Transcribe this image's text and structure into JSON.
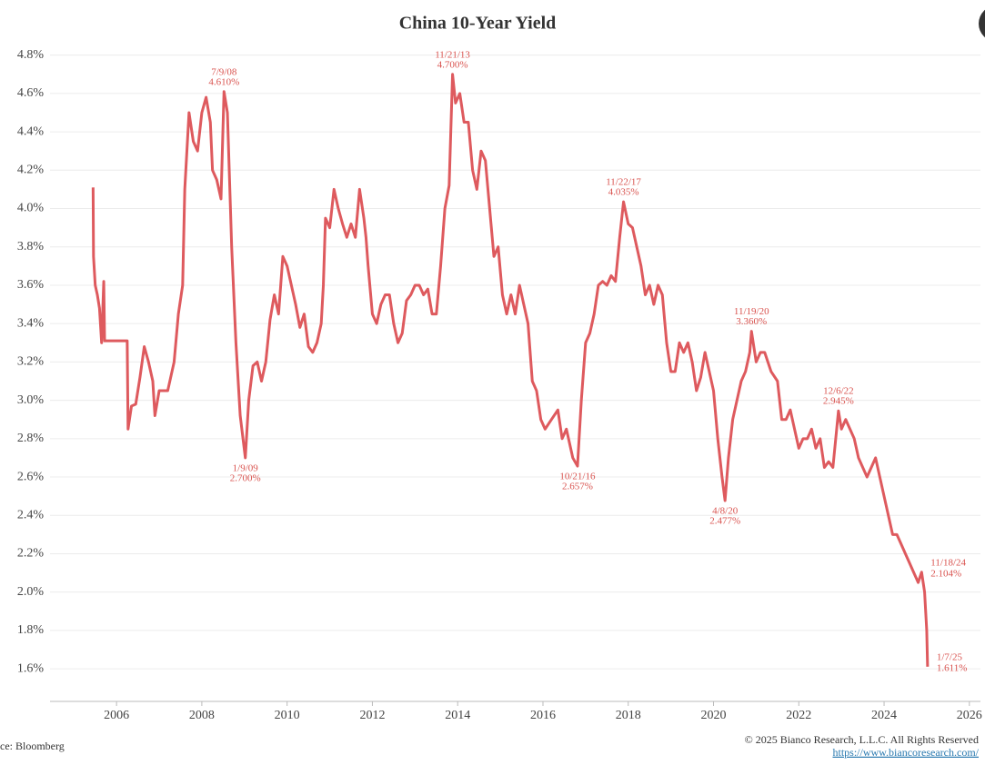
{
  "chart_data": {
    "type": "line",
    "title": "China 10-Year Yield",
    "source": "ce: Bloomberg",
    "copyright": "© 2025 Bianco Research, L.L.C. All Rights Reserved",
    "url": "https://www.biancoresearch.com/",
    "xlim": [
      2004.44,
      2026.26
    ],
    "xticks": [
      2006,
      2008,
      2010,
      2012,
      2014,
      2016,
      2018,
      2020,
      2022,
      2024,
      2026
    ],
    "ylim": [
      1.43,
      4.86
    ],
    "yticks": [
      {
        "value": 1.6,
        "label": "1.6%"
      },
      {
        "value": 1.8,
        "label": "1.8%"
      },
      {
        "value": 2.0,
        "label": "2.0%"
      },
      {
        "value": 2.2,
        "label": "2.2%"
      },
      {
        "value": 2.4,
        "label": "2.4%"
      },
      {
        "value": 2.6,
        "label": "2.6%"
      },
      {
        "value": 2.8,
        "label": "2.8%"
      },
      {
        "value": 3.0,
        "label": "3.0%"
      },
      {
        "value": 3.2,
        "label": "3.2%"
      },
      {
        "value": 3.4,
        "label": "3.4%"
      },
      {
        "value": 3.6,
        "label": "3.6%"
      },
      {
        "value": 3.8,
        "label": "3.8%"
      },
      {
        "value": 4.0,
        "label": "4.0%"
      },
      {
        "value": 4.2,
        "label": "4.2%"
      },
      {
        "value": 4.4,
        "label": "4.4%"
      },
      {
        "value": 4.6,
        "label": "4.6%"
      },
      {
        "value": 4.8,
        "label": "4.8%"
      }
    ],
    "grid": true,
    "color": "#de5a5e",
    "x": [
      2005.45,
      2005.46,
      2005.5,
      2005.55,
      2005.6,
      2005.65,
      2005.7,
      2005.72,
      2005.8,
      2006.25,
      2006.27,
      2006.35,
      2006.45,
      2006.55,
      2006.65,
      2006.75,
      2006.85,
      2006.9,
      2007.0,
      2007.2,
      2007.35,
      2007.45,
      2007.55,
      2007.6,
      2007.7,
      2007.8,
      2007.9,
      2008.0,
      2008.1,
      2008.2,
      2008.25,
      2008.35,
      2008.45,
      2008.52,
      2008.6,
      2008.7,
      2008.8,
      2008.9,
      2009.02,
      2009.1,
      2009.2,
      2009.3,
      2009.4,
      2009.5,
      2009.6,
      2009.7,
      2009.8,
      2009.9,
      2010.0,
      2010.1,
      2010.2,
      2010.3,
      2010.4,
      2010.5,
      2010.6,
      2010.7,
      2010.8,
      2010.85,
      2010.9,
      2011.0,
      2011.1,
      2011.2,
      2011.3,
      2011.4,
      2011.5,
      2011.6,
      2011.7,
      2011.8,
      2011.85,
      2011.9,
      2012.0,
      2012.1,
      2012.2,
      2012.3,
      2012.4,
      2012.5,
      2012.6,
      2012.7,
      2012.8,
      2012.9,
      2013.0,
      2013.1,
      2013.2,
      2013.3,
      2013.4,
      2013.5,
      2013.6,
      2013.7,
      2013.8,
      2013.88,
      2013.95,
      2014.05,
      2014.15,
      2014.25,
      2014.35,
      2014.45,
      2014.55,
      2014.65,
      2014.75,
      2014.85,
      2014.95,
      2015.05,
      2015.15,
      2015.25,
      2015.35,
      2015.45,
      2015.55,
      2015.65,
      2015.75,
      2015.85,
      2015.95,
      2016.05,
      2016.2,
      2016.35,
      2016.45,
      2016.55,
      2016.7,
      2016.81,
      2016.9,
      2017.0,
      2017.1,
      2017.2,
      2017.3,
      2017.4,
      2017.5,
      2017.6,
      2017.7,
      2017.8,
      2017.89,
      2018.0,
      2018.1,
      2018.2,
      2018.3,
      2018.4,
      2018.5,
      2018.6,
      2018.7,
      2018.8,
      2018.9,
      2019.0,
      2019.1,
      2019.2,
      2019.3,
      2019.4,
      2019.5,
      2019.6,
      2019.7,
      2019.8,
      2019.9,
      2020.0,
      2020.1,
      2020.2,
      2020.27,
      2020.35,
      2020.45,
      2020.55,
      2020.65,
      2020.75,
      2020.85,
      2020.89,
      2021.0,
      2021.1,
      2021.2,
      2021.35,
      2021.5,
      2021.6,
      2021.7,
      2021.8,
      2021.9,
      2022.0,
      2022.1,
      2022.2,
      2022.3,
      2022.4,
      2022.5,
      2022.6,
      2022.7,
      2022.8,
      2022.93,
      2023.0,
      2023.1,
      2023.2,
      2023.3,
      2023.4,
      2023.5,
      2023.6,
      2023.7,
      2023.8,
      2023.9,
      2024.0,
      2024.1,
      2024.2,
      2024.3,
      2024.4,
      2024.5,
      2024.6,
      2024.7,
      2024.8,
      2024.88,
      2024.95,
      2025.0,
      2025.02
    ],
    "values": [
      4.11,
      3.75,
      3.6,
      3.55,
      3.48,
      3.3,
      3.62,
      3.31,
      3.31,
      3.31,
      2.85,
      2.97,
      2.98,
      3.12,
      3.28,
      3.2,
      3.1,
      2.92,
      3.05,
      3.05,
      3.2,
      3.45,
      3.6,
      4.1,
      4.5,
      4.35,
      4.3,
      4.5,
      4.58,
      4.45,
      4.2,
      4.15,
      4.05,
      4.61,
      4.5,
      3.8,
      3.3,
      2.92,
      2.7,
      3.0,
      3.18,
      3.2,
      3.1,
      3.2,
      3.42,
      3.55,
      3.45,
      3.75,
      3.7,
      3.6,
      3.5,
      3.38,
      3.45,
      3.28,
      3.25,
      3.3,
      3.4,
      3.6,
      3.95,
      3.9,
      4.1,
      4.0,
      3.92,
      3.85,
      3.92,
      3.85,
      4.1,
      3.95,
      3.85,
      3.7,
      3.45,
      3.4,
      3.5,
      3.55,
      3.55,
      3.4,
      3.3,
      3.35,
      3.52,
      3.55,
      3.6,
      3.6,
      3.55,
      3.58,
      3.45,
      3.45,
      3.7,
      4.0,
      4.12,
      4.7,
      4.55,
      4.6,
      4.45,
      4.45,
      4.2,
      4.1,
      4.3,
      4.25,
      4.0,
      3.75,
      3.8,
      3.55,
      3.45,
      3.55,
      3.45,
      3.6,
      3.5,
      3.4,
      3.1,
      3.05,
      2.9,
      2.85,
      2.9,
      2.95,
      2.8,
      2.85,
      2.7,
      2.657,
      3.0,
      3.3,
      3.35,
      3.45,
      3.6,
      3.62,
      3.6,
      3.65,
      3.62,
      3.85,
      4.035,
      3.92,
      3.9,
      3.8,
      3.7,
      3.55,
      3.6,
      3.5,
      3.6,
      3.55,
      3.3,
      3.15,
      3.15,
      3.3,
      3.25,
      3.3,
      3.2,
      3.05,
      3.12,
      3.25,
      3.15,
      3.05,
      2.8,
      2.6,
      2.477,
      2.7,
      2.9,
      3.0,
      3.1,
      3.15,
      3.25,
      3.36,
      3.2,
      3.25,
      3.25,
      3.15,
      3.1,
      2.9,
      2.9,
      2.95,
      2.85,
      2.75,
      2.8,
      2.8,
      2.85,
      2.75,
      2.8,
      2.65,
      2.68,
      2.65,
      2.945,
      2.85,
      2.9,
      2.85,
      2.8,
      2.7,
      2.65,
      2.6,
      2.65,
      2.7,
      2.6,
      2.5,
      2.4,
      2.3,
      2.3,
      2.25,
      2.2,
      2.15,
      2.1,
      2.05,
      2.104,
      2.0,
      1.8,
      1.611
    ],
    "annotations": [
      {
        "date": "7/9/08",
        "x": 2008.52,
        "value": 4.61,
        "value_label": "4.610%",
        "position": "above"
      },
      {
        "date": "1/9/09",
        "x": 2009.02,
        "value": 2.7,
        "value_label": "2.700%",
        "position": "below"
      },
      {
        "date": "11/21/13",
        "x": 2013.88,
        "value": 4.7,
        "value_label": "4.700%",
        "position": "above"
      },
      {
        "date": "10/21/16",
        "x": 2016.81,
        "value": 2.657,
        "value_label": "2.657%",
        "position": "below"
      },
      {
        "date": "11/22/17",
        "x": 2017.89,
        "value": 4.035,
        "value_label": "4.035%",
        "position": "above"
      },
      {
        "date": "4/8/20",
        "x": 2020.27,
        "value": 2.477,
        "value_label": "2.477%",
        "position": "below"
      },
      {
        "date": "11/19/20",
        "x": 2020.89,
        "value": 3.36,
        "value_label": "3.360%",
        "position": "above"
      },
      {
        "date": "12/6/22",
        "x": 2022.93,
        "value": 2.945,
        "value_label": "2.945%",
        "position": "above"
      },
      {
        "date": "11/18/24",
        "x": 2024.88,
        "value": 2.104,
        "value_label": "2.104%",
        "position": "right"
      },
      {
        "date": "1/7/25",
        "x": 2025.02,
        "value": 1.611,
        "value_label": "1.611%",
        "position": "right"
      }
    ]
  }
}
